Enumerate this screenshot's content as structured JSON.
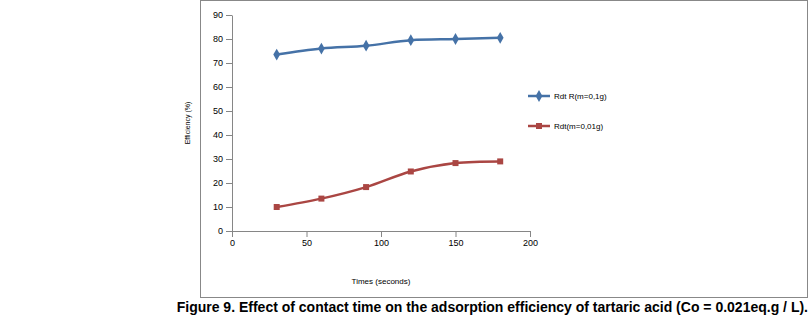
{
  "chart_data": {
    "type": "line",
    "title": "Figure 9. Effect of contact time on the adsorption efficiency of tartaric acid (Co = 0.021eq.g / L).",
    "x_label": "Times (seconds)",
    "y_label": "Efficiency (%)",
    "x": [
      30,
      60,
      90,
      120,
      150,
      180
    ],
    "series": [
      {
        "name": "Rdt R(m=0,1g)",
        "color": "#4572a7",
        "marker": "diamond",
        "line_style": "smooth",
        "values": [
          73.5,
          76,
          77.2,
          79.5,
          80,
          80.5
        ]
      },
      {
        "name": "Rdt(m=0,01g)",
        "color": "#aa4643",
        "marker": "square",
        "line_style": "smooth",
        "values": [
          10,
          13.5,
          18.3,
          24.8,
          28.3,
          29
        ]
      }
    ],
    "xlim": [
      0,
      200
    ],
    "xticks": [
      0,
      50,
      100,
      150,
      200
    ],
    "ylim": [
      0,
      90
    ],
    "yticks": [
      0,
      10,
      20,
      30,
      40,
      50,
      60,
      70,
      80,
      90
    ],
    "grid": false,
    "legend": "right"
  }
}
